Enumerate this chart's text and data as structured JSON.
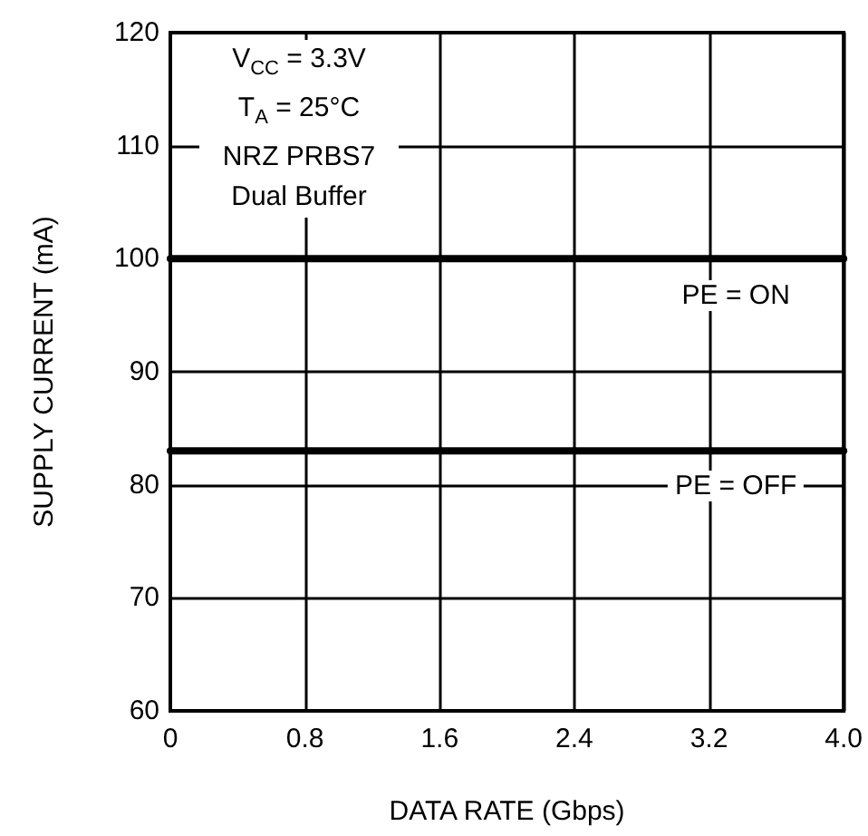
{
  "chart_data": {
    "type": "line",
    "xlabel": "DATA RATE (Gbps)",
    "ylabel": "SUPPLY CURRENT (mA)",
    "x": [
      0,
      4
    ],
    "series": [
      {
        "name": "PE = ON",
        "color": "#000000",
        "values": [
          100,
          100
        ]
      },
      {
        "name": "PE = OFF",
        "color": "#000000",
        "values": [
          83,
          83
        ]
      }
    ],
    "xlim": [
      0,
      4
    ],
    "xticks": [
      0,
      0.8,
      1.6,
      2.4,
      3.2,
      {
        "value": 4,
        "label": "4.0"
      }
    ],
    "ylim": [
      60,
      120
    ],
    "yticks": [
      60,
      70,
      80,
      90,
      100,
      110,
      120
    ],
    "annotations": [
      "V$_{CC}$ = 3.3V",
      "T$_{A}$ = 25°C",
      "NRZ PRBS7",
      "Dual Buffer"
    ],
    "grid": true,
    "legend": false,
    "marker": "none",
    "line_style": "solid"
  }
}
